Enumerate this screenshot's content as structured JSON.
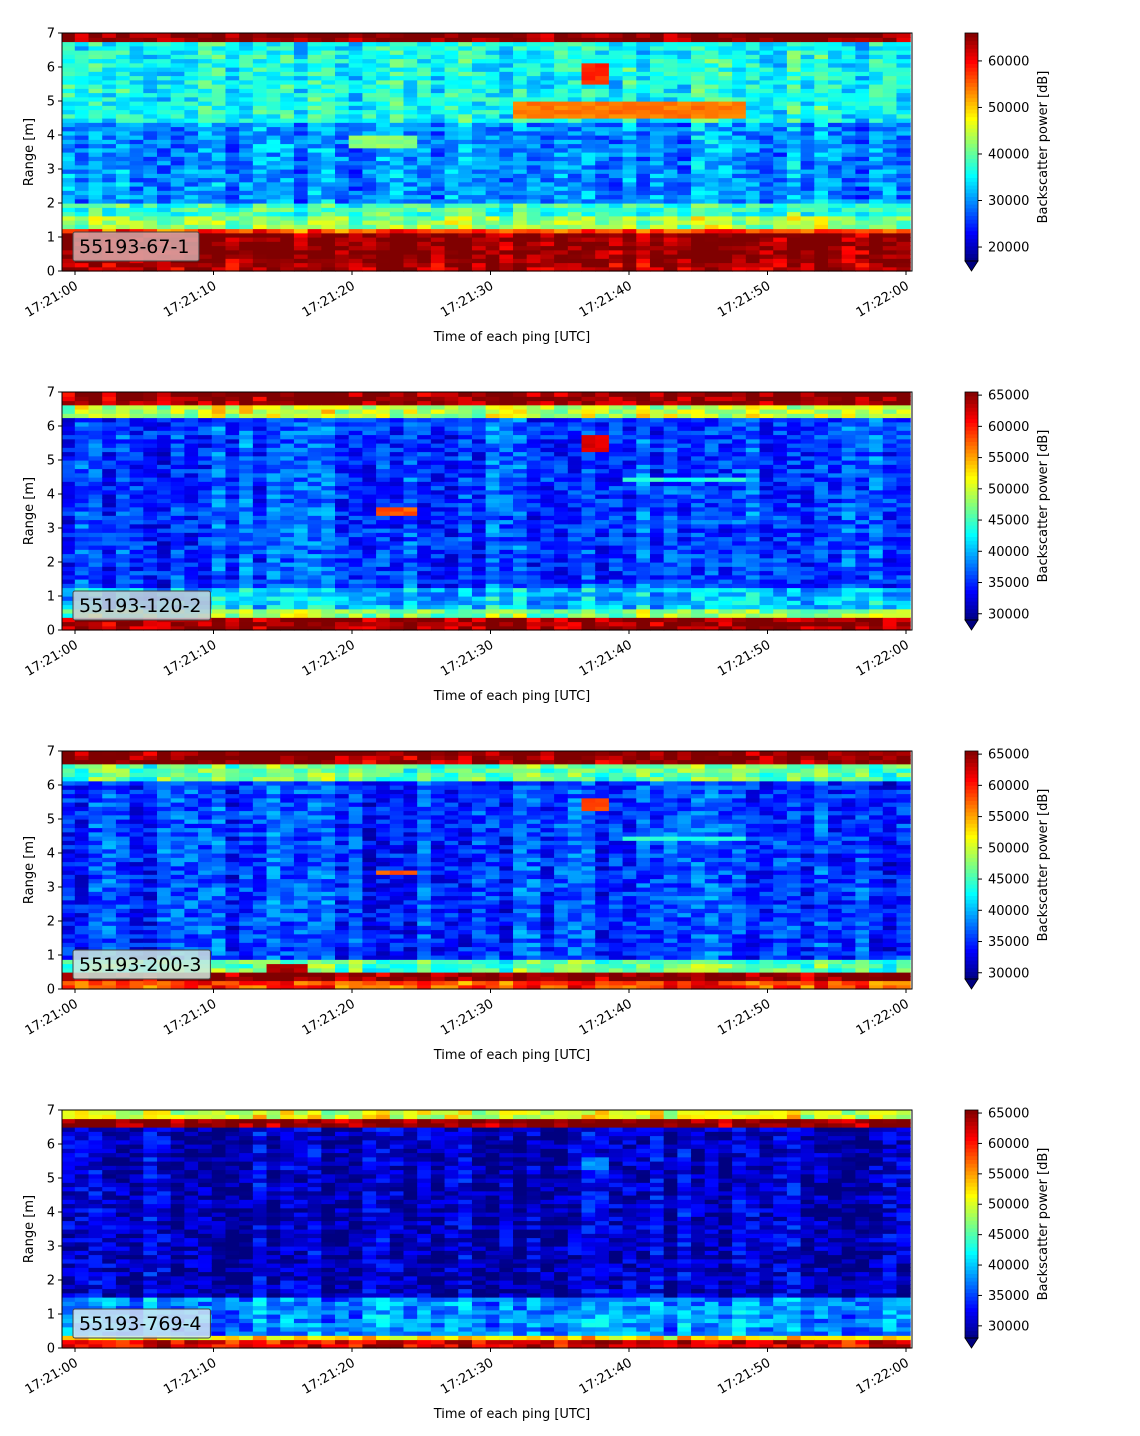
{
  "chart_data": [
    {
      "type": "heatmap",
      "panel_label": "55193-67-1",
      "xlabel": "Time of each ping [UTC]",
      "ylabel": "Range [m]",
      "colorbar_label": "Backscatter power [dB]",
      "x_ticks": [
        "17:21:00",
        "17:21:10",
        "17:21:20",
        "17:21:30",
        "17:21:40",
        "17:21:50",
        "17:22:00"
      ],
      "y_ticks": [
        0,
        1,
        2,
        3,
        4,
        5,
        6,
        7
      ],
      "ylim": [
        0,
        7
      ],
      "colorbar_ticks": [
        20000,
        30000,
        40000,
        50000,
        60000
      ],
      "clim": [
        17000,
        66000
      ],
      "colormap": "jet",
      "label_box_color": "#d8aaaa",
      "bands": [
        {
          "range": [
            0.0,
            0.2
          ],
          "value": 64000
        },
        {
          "range": [
            0.2,
            1.15
          ],
          "value": 66000
        },
        {
          "range": [
            1.15,
            1.3
          ],
          "value": 56000
        },
        {
          "range": [
            1.3,
            1.6
          ],
          "value": 43000
        },
        {
          "range": [
            1.6,
            2.0
          ],
          "value": 38000
        },
        {
          "range": [
            2.0,
            4.4
          ],
          "value": 30000
        },
        {
          "range": [
            4.4,
            6.7
          ],
          "value": 36000
        },
        {
          "range": [
            6.7,
            7.0
          ],
          "value": 66000
        }
      ],
      "features": [
        {
          "t0": 32,
          "t1": 48,
          "r0": 4.55,
          "r1": 4.95,
          "value": 54000
        },
        {
          "t0": 37,
          "t1": 39,
          "r0": 5.5,
          "r1": 6.1,
          "value": 58000
        },
        {
          "t0": 20,
          "t1": 25,
          "r0": 3.6,
          "r1": 4.0,
          "value": 42000
        }
      ]
    },
    {
      "type": "heatmap",
      "panel_label": "55193-120-2",
      "xlabel": "Time of each ping [UTC]",
      "ylabel": "Range [m]",
      "colorbar_label": "Backscatter power [dB]",
      "x_ticks": [
        "17:21:00",
        "17:21:10",
        "17:21:20",
        "17:21:30",
        "17:21:40",
        "17:21:50",
        "17:22:00"
      ],
      "y_ticks": [
        0,
        1,
        2,
        3,
        4,
        5,
        6,
        7
      ],
      "ylim": [
        0,
        7
      ],
      "colorbar_ticks": [
        30000,
        35000,
        40000,
        45000,
        50000,
        55000,
        60000,
        65000
      ],
      "clim": [
        29000,
        65500
      ],
      "colormap": "jet",
      "label_box_color": "#c8ccd8",
      "bands": [
        {
          "range": [
            0.0,
            0.35
          ],
          "value": 65000
        },
        {
          "range": [
            0.35,
            0.6
          ],
          "value": 48000
        },
        {
          "range": [
            0.6,
            1.2
          ],
          "value": 41000
        },
        {
          "range": [
            1.2,
            6.2
          ],
          "value": 36000
        },
        {
          "range": [
            6.2,
            6.6
          ],
          "value": 50000
        },
        {
          "range": [
            6.6,
            7.0
          ],
          "value": 65000
        }
      ],
      "features": [
        {
          "t0": 22,
          "t1": 25,
          "r0": 3.35,
          "r1": 3.6,
          "value": 58000
        },
        {
          "t0": 37,
          "t1": 39,
          "r0": 5.2,
          "r1": 5.7,
          "value": 62000
        },
        {
          "t0": 40,
          "t1": 48,
          "r0": 4.35,
          "r1": 4.55,
          "value": 44000
        }
      ]
    },
    {
      "type": "heatmap",
      "panel_label": "55193-200-3",
      "xlabel": "Time of each ping [UTC]",
      "ylabel": "Range [m]",
      "colorbar_label": "Backscatter power [dB]",
      "x_ticks": [
        "17:21:00",
        "17:21:10",
        "17:21:20",
        "17:21:30",
        "17:21:40",
        "17:21:50",
        "17:22:00"
      ],
      "y_ticks": [
        0,
        1,
        2,
        3,
        4,
        5,
        6,
        7
      ],
      "ylim": [
        0,
        7
      ],
      "colorbar_ticks": [
        30000,
        35000,
        40000,
        45000,
        50000,
        55000,
        60000,
        65000
      ],
      "clim": [
        29000,
        65500
      ],
      "colormap": "jet",
      "label_box_color": "#cfe9de",
      "bands": [
        {
          "range": [
            0.0,
            0.25
          ],
          "value": 58000
        },
        {
          "range": [
            0.25,
            0.45
          ],
          "value": 65000
        },
        {
          "range": [
            0.45,
            0.9
          ],
          "value": 46000
        },
        {
          "range": [
            0.9,
            6.1
          ],
          "value": 35500
        },
        {
          "range": [
            6.1,
            6.6
          ],
          "value": 46000
        },
        {
          "range": [
            6.6,
            7.0
          ],
          "value": 65000
        }
      ],
      "features": [
        {
          "t0": 14,
          "t1": 17,
          "r0": 0.45,
          "r1": 0.7,
          "value": 64000
        },
        {
          "t0": 22,
          "t1": 25,
          "r0": 3.35,
          "r1": 3.55,
          "value": 58000
        },
        {
          "t0": 40,
          "t1": 48,
          "r0": 4.35,
          "r1": 4.55,
          "value": 44000
        },
        {
          "t0": 37,
          "t1": 39,
          "r0": 5.2,
          "r1": 5.6,
          "value": 58000
        }
      ]
    },
    {
      "type": "heatmap",
      "panel_label": "55193-769-4",
      "xlabel": "Time of each ping [UTC]",
      "ylabel": "Range [m]",
      "colorbar_label": "Backscatter power [dB]",
      "x_ticks": [
        "17:21:00",
        "17:21:10",
        "17:21:20",
        "17:21:30",
        "17:21:40",
        "17:21:50",
        "17:22:00"
      ],
      "y_ticks": [
        0,
        1,
        2,
        3,
        4,
        5,
        6,
        7
      ],
      "ylim": [
        0,
        7
      ],
      "colorbar_ticks": [
        30000,
        35000,
        40000,
        45000,
        50000,
        55000,
        60000,
        65000
      ],
      "clim": [
        28000,
        65500
      ],
      "colormap": "jet",
      "label_box_color": "#d2e8f2",
      "bands": [
        {
          "range": [
            0.0,
            0.2
          ],
          "value": 62000
        },
        {
          "range": [
            0.2,
            0.35
          ],
          "value": 52000
        },
        {
          "range": [
            0.35,
            1.5
          ],
          "value": 38000
        },
        {
          "range": [
            1.5,
            6.5
          ],
          "value": 30500
        },
        {
          "range": [
            6.5,
            6.8
          ],
          "value": 65000
        },
        {
          "range": [
            6.8,
            7.0
          ],
          "value": 50000
        }
      ],
      "features": [
        {
          "t0": 37,
          "t1": 39,
          "r0": 5.25,
          "r1": 5.6,
          "value": 38000
        }
      ]
    }
  ]
}
